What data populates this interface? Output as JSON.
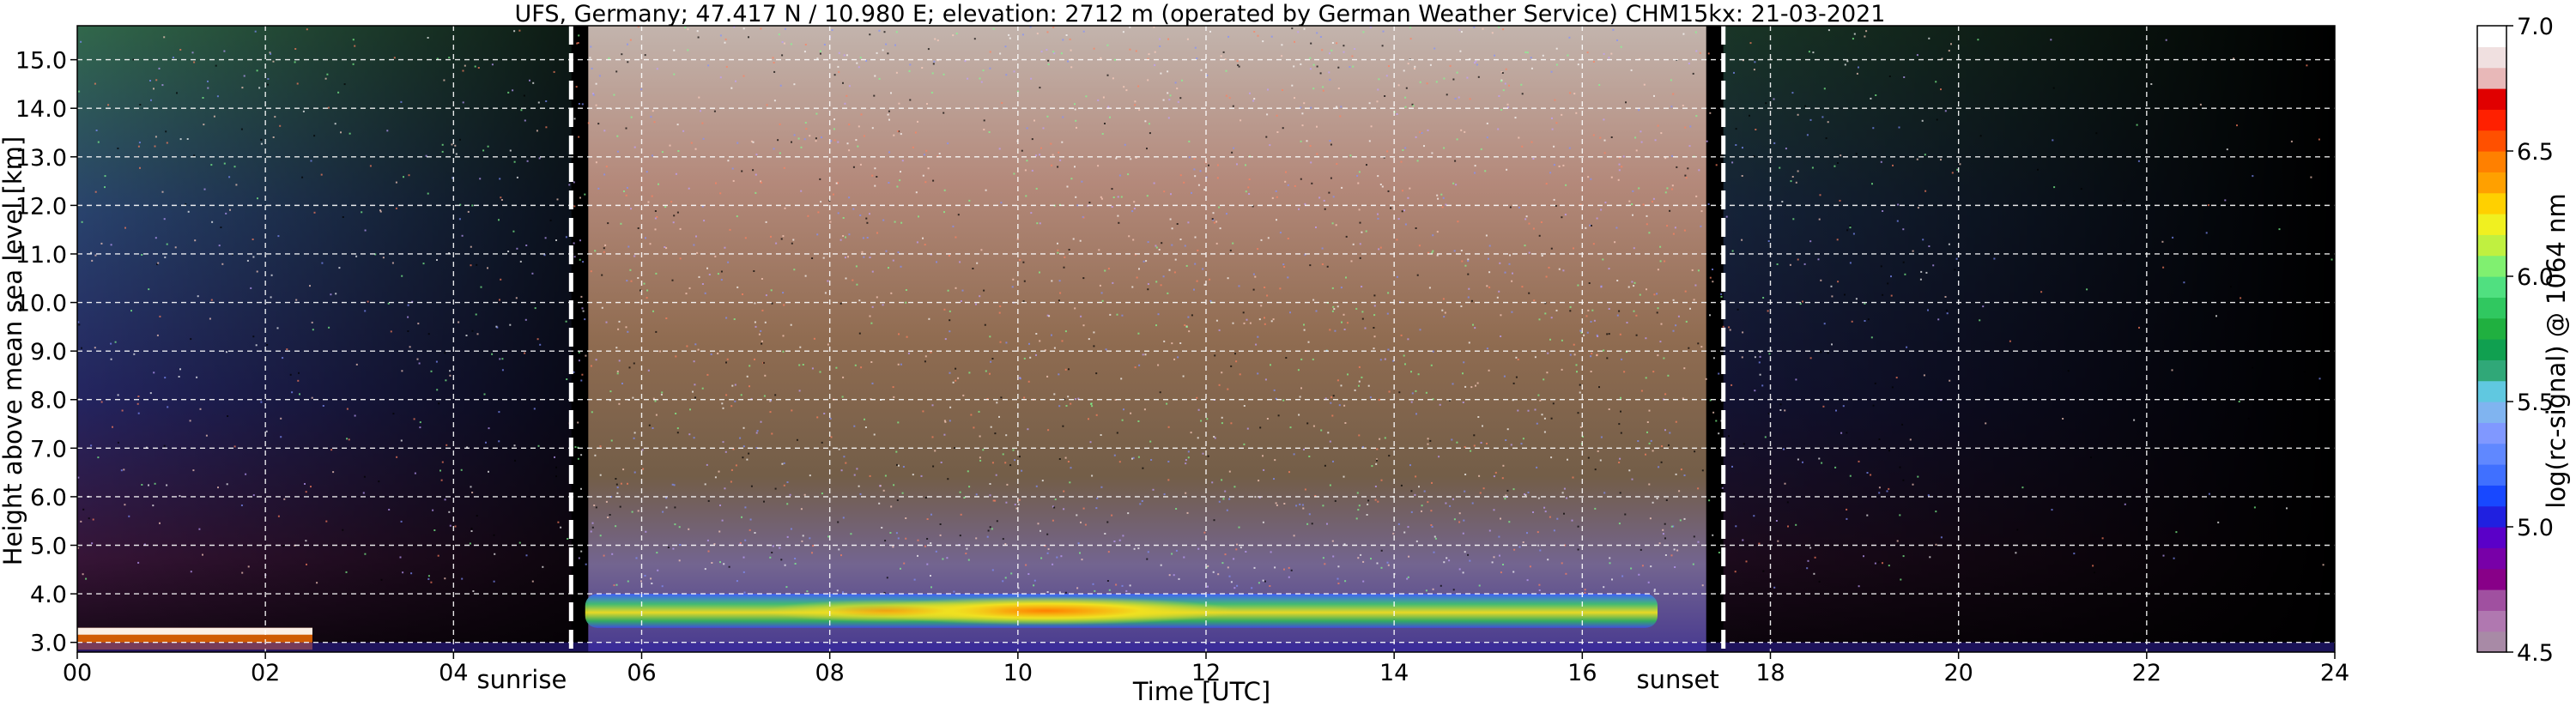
{
  "chart_data": {
    "type": "heatmap",
    "title": "UFS, Germany; 47.417 N / 10.980 E; elevation: 2712 m  (operated by German Weather Service)     CHM15kx: 21-03-2021",
    "xlabel": "Time [UTC]",
    "ylabel": "Height above mean sea level [km]",
    "xlim": [
      0,
      24
    ],
    "ylim": [
      2.8,
      15.7
    ],
    "x_ticks": [
      "00",
      "02",
      "04",
      "06",
      "08",
      "10",
      "12",
      "14",
      "16",
      "18",
      "20",
      "22",
      "24"
    ],
    "x_tick_values": [
      0,
      2,
      4,
      6,
      8,
      10,
      12,
      14,
      16,
      18,
      20,
      22,
      24
    ],
    "y_ticks": [
      "3.0",
      "4.0",
      "5.0",
      "6.0",
      "7.0",
      "8.0",
      "9.0",
      "10.0",
      "11.0",
      "12.0",
      "13.0",
      "14.0",
      "15.0"
    ],
    "y_tick_values": [
      3,
      4,
      5,
      6,
      7,
      8,
      9,
      10,
      11,
      12,
      13,
      14,
      15
    ],
    "grid": true,
    "events": [
      {
        "label": "sunrise",
        "x": 5.25
      },
      {
        "label": "sunset",
        "x": 17.5
      }
    ],
    "colorbar": {
      "label": "log(rc-signal) @ 1064 nm",
      "range": [
        4.5,
        7.0
      ],
      "ticks": [
        "4.5",
        "5.0",
        "5.5",
        "6.0",
        "6.5",
        "7.0"
      ],
      "tick_values": [
        4.5,
        5.0,
        5.5,
        6.0,
        6.5,
        7.0
      ],
      "colors": [
        "#a88aa6",
        "#b078b0",
        "#a050a0",
        "#880088",
        "#7800a8",
        "#5a00c8",
        "#2020e0",
        "#1848ff",
        "#4070ff",
        "#6088ff",
        "#8098ff",
        "#80b4f0",
        "#60c8e0",
        "#30a878",
        "#10a050",
        "#20b040",
        "#30c860",
        "#50e080",
        "#80f070",
        "#c0f040",
        "#f0f020",
        "#ffd000",
        "#ffa000",
        "#ff8000",
        "#ff5000",
        "#ff2000",
        "#e00000",
        "#e8b8b8",
        "#f0e0e0",
        "#ffffff"
      ]
    },
    "features": [
      {
        "name": "cloud layer",
        "x_range": [
          5.4,
          16.8
        ],
        "height_range": [
          3.3,
          4.0
        ],
        "signal_range": [
          5.5,
          6.8
        ]
      },
      {
        "name": "surface layer",
        "x_range": [
          0,
          2.5
        ],
        "height_range": [
          2.85,
          3.3
        ],
        "signal_range": [
          6.0,
          7.0
        ]
      },
      {
        "name": "daylight background",
        "x_range": [
          5.25,
          17.5
        ],
        "height_range": [
          4.0,
          15.7
        ],
        "signal_range": [
          6.0,
          7.0
        ]
      }
    ]
  }
}
